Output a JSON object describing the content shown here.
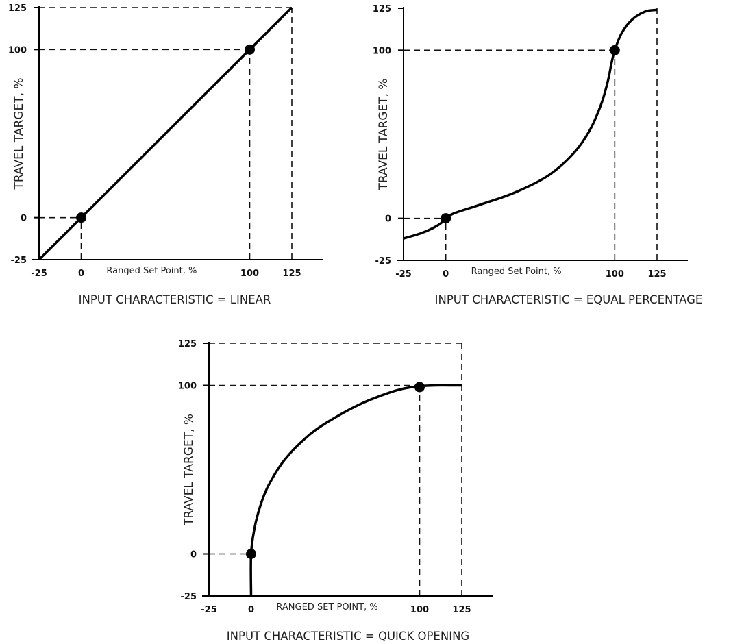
{
  "chart_data": [
    {
      "type": "line",
      "title": "INPUT CHARACTERISTIC = LINEAR",
      "xlabel": "Ranged Set Point, %",
      "ylabel": "TRAVEL TARGET, %",
      "xlim": [
        -25,
        125
      ],
      "ylim": [
        -25,
        125
      ],
      "x_ticks": [
        "-25",
        "0",
        "100",
        "125"
      ],
      "y_ticks": [
        "125",
        "100",
        "0",
        "-25"
      ],
      "grid": false,
      "series": [
        {
          "x": [
            -25,
            0,
            25,
            50,
            75,
            100,
            125
          ],
          "y": [
            -25,
            0,
            25,
            50,
            75,
            100,
            125
          ]
        }
      ],
      "markers": [
        {
          "x": 0,
          "y": 0
        },
        {
          "x": 100,
          "y": 100
        }
      ],
      "reference_lines": [
        "y=0",
        "y=100",
        "y=125",
        "x=0",
        "x=100",
        "x=125"
      ]
    },
    {
      "type": "line",
      "title": "INPUT CHARACTERISTIC = EQUAL PERCENTAGE",
      "xlabel": "Ranged Set Point, %",
      "ylabel": "TRAVEL TARGET, %",
      "xlim": [
        -25,
        125
      ],
      "ylim": [
        -25,
        125
      ],
      "x_ticks": [
        "-25",
        "0",
        "100",
        "125"
      ],
      "y_ticks": [
        "125",
        "100",
        "0",
        "-25"
      ],
      "grid": false,
      "series": [
        {
          "x": [
            -25,
            -15,
            -8,
            -3,
            0,
            5,
            20,
            40,
            60,
            75,
            85,
            92,
            96,
            98,
            100,
            104,
            110,
            118,
            125
          ],
          "y": [
            -12,
            -9,
            -6,
            -3,
            0,
            3,
            8,
            15,
            25,
            38,
            52,
            68,
            82,
            92,
            100,
            110,
            118,
            123,
            124
          ]
        }
      ],
      "markers": [
        {
          "x": 0,
          "y": 0
        },
        {
          "x": 100,
          "y": 100
        }
      ],
      "reference_lines": [
        "y=0",
        "y=100",
        "x=0",
        "x=100",
        "x=125"
      ]
    },
    {
      "type": "line",
      "title": "INPUT CHARACTERISTIC = QUICK OPENING",
      "xlabel": "RANGED SET POINT, %",
      "ylabel": "TRAVEL TARGET, %",
      "xlim": [
        -25,
        125
      ],
      "ylim": [
        -25,
        125
      ],
      "x_ticks": [
        "-25",
        "0",
        "100",
        "125"
      ],
      "y_ticks": [
        "125",
        "100",
        "0",
        "-25"
      ],
      "grid": false,
      "series": [
        {
          "x": [
            0,
            0,
            2,
            5,
            10,
            20,
            35,
            50,
            65,
            80,
            90,
            100,
            110,
            120,
            125
          ],
          "y": [
            -25,
            0,
            15,
            27,
            40,
            56,
            71,
            81,
            89,
            95,
            98,
            99.5,
            100,
            100,
            100
          ]
        }
      ],
      "markers": [
        {
          "x": 0,
          "y": 0
        },
        {
          "x": 100,
          "y": 99
        }
      ],
      "reference_lines": [
        "y=0",
        "y=100",
        "y=125",
        "x=0",
        "x=100",
        "x=125"
      ]
    }
  ]
}
